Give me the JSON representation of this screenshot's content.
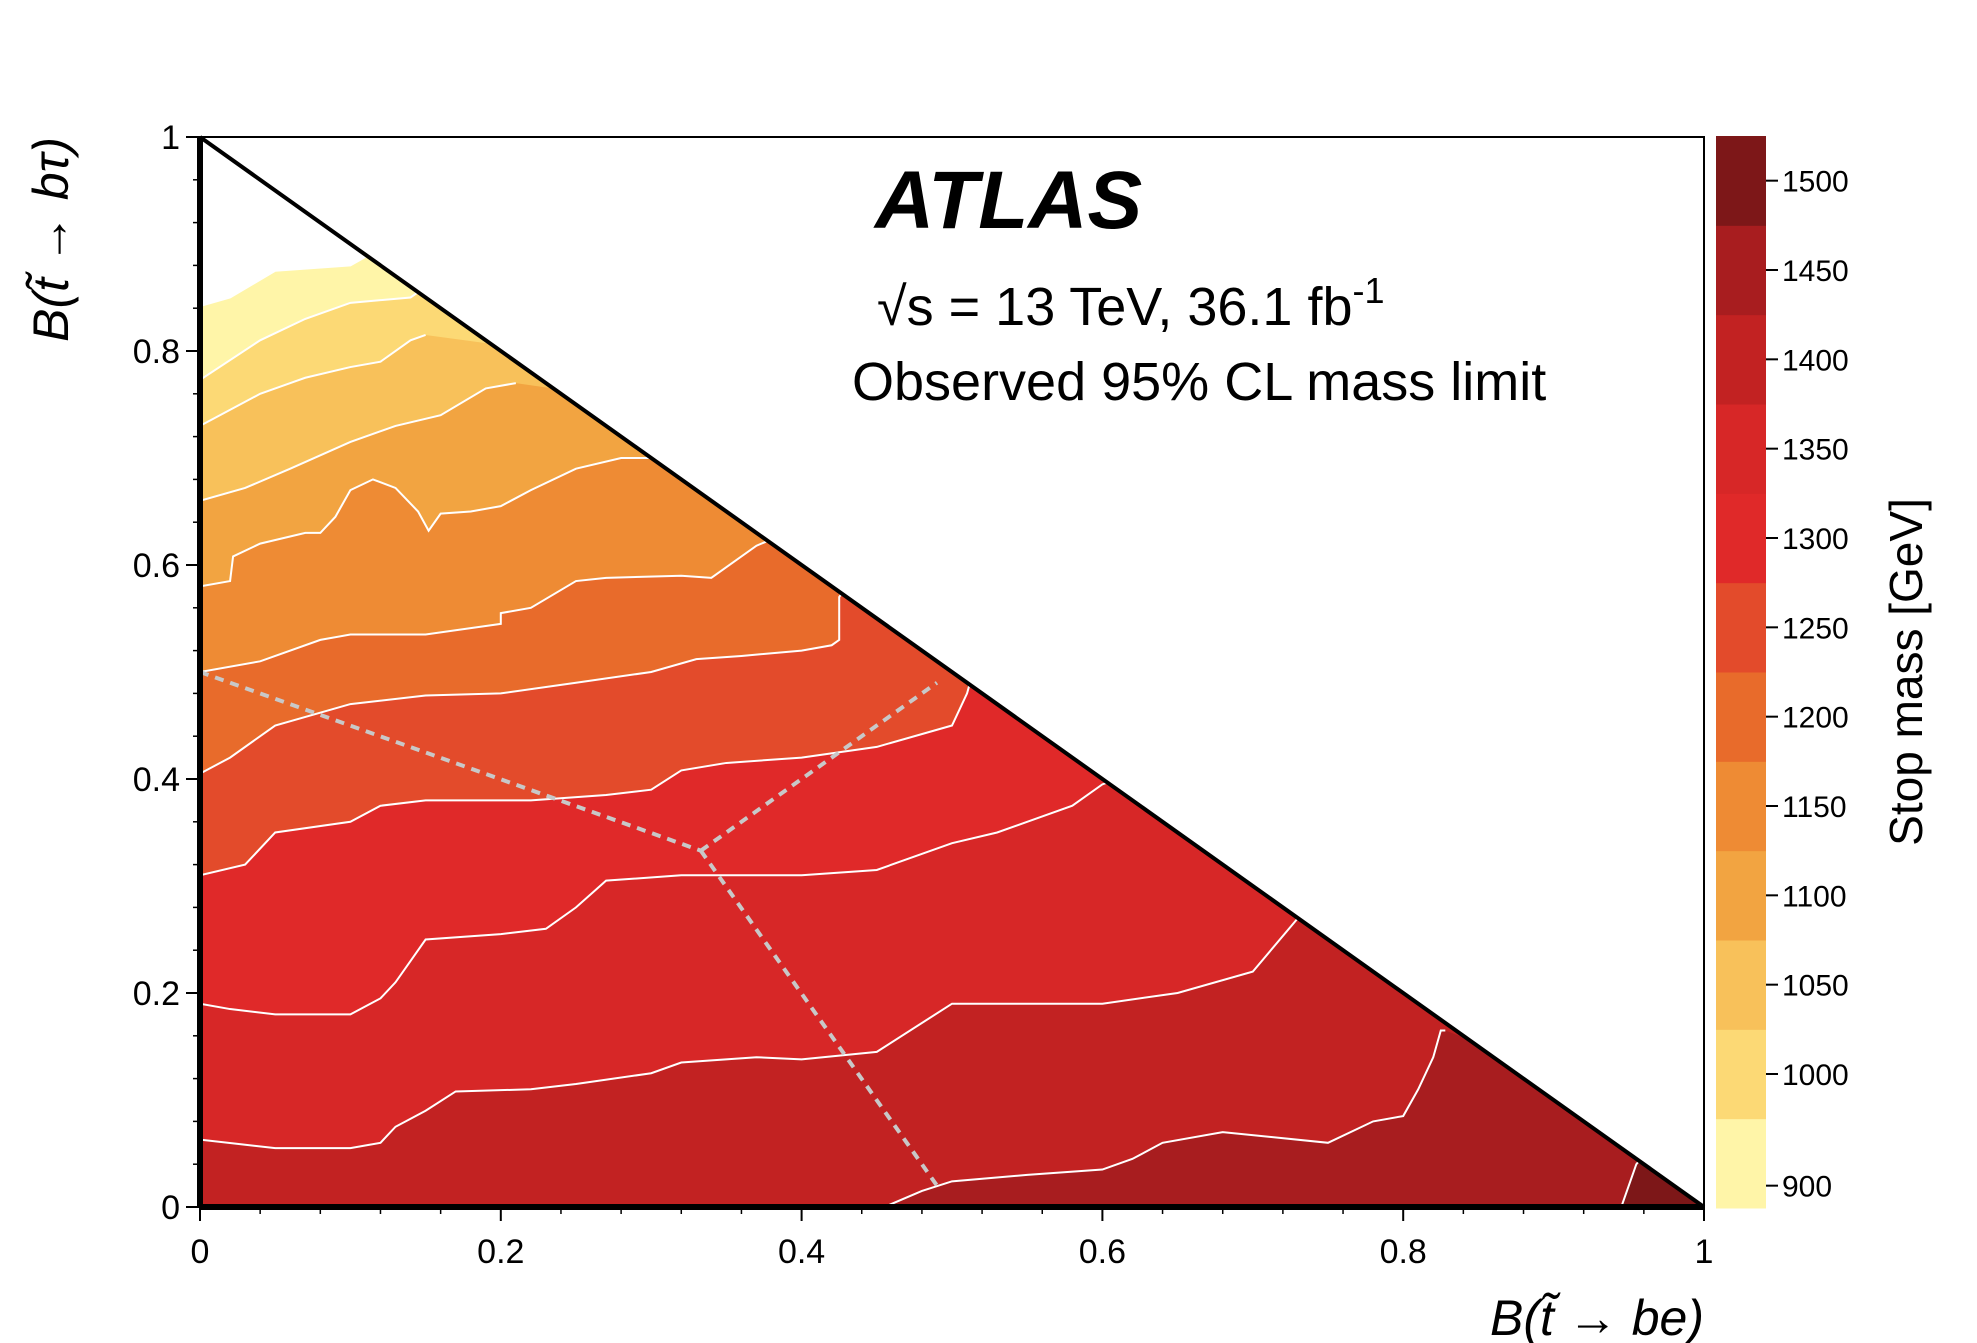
{
  "chart_data": {
    "type": "heatmap",
    "title": "ATLAS",
    "subtitle_energy": "√s = 13 TeV, 36.1 fb",
    "subtitle_energy_sup": "-1",
    "subtitle_limit": "Observed 95% CL mass limit",
    "xlabel": "B(t̃ → be)",
    "ylabel": "B(t̃ → bτ)",
    "xlim": [
      0,
      1
    ],
    "ylim": [
      0,
      1
    ],
    "x_ticks": [
      "0",
      "0.2",
      "0.4",
      "0.6",
      "0.8",
      "1"
    ],
    "y_ticks": [
      "0",
      "0.2",
      "0.4",
      "0.6",
      "0.8",
      "1"
    ],
    "x_tick_values": [
      0,
      0.2,
      0.4,
      0.6,
      0.8,
      1
    ],
    "y_tick_values": [
      0,
      0.2,
      0.4,
      0.6,
      0.8,
      1
    ],
    "colorbar": {
      "label": "Stop mass [GeV]",
      "range": [
        875,
        1525
      ],
      "tick_labels": [
        "900",
        "1000",
        "1050",
        "1100",
        "1150",
        "1200",
        "1250",
        "1300",
        "1350",
        "1400",
        "1450",
        "1500"
      ],
      "tick_values": [
        900,
        1000,
        1050,
        1100,
        1150,
        1200,
        1250,
        1300,
        1350,
        1400,
        1450,
        1500
      ],
      "bands": [
        {
          "from": 875,
          "to": 975,
          "color": "#fff5a8"
        },
        {
          "from": 975,
          "to": 1025,
          "color": "#fcd975"
        },
        {
          "from": 1025,
          "to": 1075,
          "color": "#f8c15a"
        },
        {
          "from": 1075,
          "to": 1125,
          "color": "#f2a441"
        },
        {
          "from": 1125,
          "to": 1175,
          "color": "#ee8b34"
        },
        {
          "from": 1175,
          "to": 1225,
          "color": "#e86b2b"
        },
        {
          "from": 1225,
          "to": 1275,
          "color": "#e34b2b"
        },
        {
          "from": 1275,
          "to": 1325,
          "color": "#e02929"
        },
        {
          "from": 1325,
          "to": 1375,
          "color": "#d72727"
        },
        {
          "from": 1375,
          "to": 1425,
          "color": "#c22222"
        },
        {
          "from": 1425,
          "to": 1475,
          "color": "#a81d1f"
        },
        {
          "from": 1475,
          "to": 1525,
          "color": "#7d1718"
        }
      ]
    },
    "contours": [
      {
        "level": 1500,
        "points": [
          [
            0.945,
            0.0
          ],
          [
            0.955,
            0.04
          ],
          [
            0.958,
            0.045
          ]
        ]
      },
      {
        "level": 1450,
        "points": [
          [
            0.455,
            0.0
          ],
          [
            0.48,
            0.015
          ],
          [
            0.5,
            0.024
          ],
          [
            0.55,
            0.03
          ],
          [
            0.6,
            0.035
          ],
          [
            0.62,
            0.045
          ],
          [
            0.64,
            0.06
          ],
          [
            0.68,
            0.07
          ],
          [
            0.75,
            0.06
          ],
          [
            0.78,
            0.08
          ],
          [
            0.8,
            0.085
          ],
          [
            0.81,
            0.11
          ],
          [
            0.82,
            0.14
          ],
          [
            0.825,
            0.165
          ],
          [
            0.828,
            0.165
          ]
        ]
      },
      {
        "level": 1400,
        "points": [
          [
            0.0,
            0.063
          ],
          [
            0.05,
            0.055
          ],
          [
            0.1,
            0.055
          ],
          [
            0.12,
            0.06
          ],
          [
            0.13,
            0.075
          ],
          [
            0.15,
            0.09
          ],
          [
            0.17,
            0.108
          ],
          [
            0.22,
            0.11
          ],
          [
            0.25,
            0.115
          ],
          [
            0.3,
            0.125
          ],
          [
            0.32,
            0.135
          ],
          [
            0.37,
            0.14
          ],
          [
            0.4,
            0.138
          ],
          [
            0.45,
            0.145
          ],
          [
            0.5,
            0.19
          ],
          [
            0.55,
            0.19
          ],
          [
            0.6,
            0.19
          ],
          [
            0.65,
            0.2
          ],
          [
            0.7,
            0.22
          ],
          [
            0.73,
            0.27
          ]
        ]
      },
      {
        "level": 1350,
        "points": [
          [
            0.0,
            0.19
          ],
          [
            0.02,
            0.185
          ],
          [
            0.05,
            0.18
          ],
          [
            0.1,
            0.18
          ],
          [
            0.12,
            0.195
          ],
          [
            0.13,
            0.21
          ],
          [
            0.14,
            0.23
          ],
          [
            0.15,
            0.25
          ],
          [
            0.2,
            0.255
          ],
          [
            0.23,
            0.26
          ],
          [
            0.25,
            0.28
          ],
          [
            0.27,
            0.305
          ],
          [
            0.32,
            0.31
          ],
          [
            0.4,
            0.31
          ],
          [
            0.45,
            0.315
          ],
          [
            0.5,
            0.34
          ],
          [
            0.53,
            0.35
          ],
          [
            0.56,
            0.365
          ],
          [
            0.58,
            0.375
          ],
          [
            0.6,
            0.395
          ],
          [
            0.62,
            0.405
          ]
        ]
      },
      {
        "level": 1300,
        "points": [
          [
            0.0,
            0.31
          ],
          [
            0.03,
            0.32
          ],
          [
            0.05,
            0.35
          ],
          [
            0.1,
            0.36
          ],
          [
            0.12,
            0.375
          ],
          [
            0.15,
            0.38
          ],
          [
            0.22,
            0.38
          ],
          [
            0.27,
            0.385
          ],
          [
            0.3,
            0.39
          ],
          [
            0.32,
            0.408
          ],
          [
            0.35,
            0.415
          ],
          [
            0.4,
            0.42
          ],
          [
            0.45,
            0.43
          ],
          [
            0.5,
            0.45
          ],
          [
            0.51,
            0.48
          ],
          [
            0.512,
            0.49
          ]
        ]
      },
      {
        "level": 1250,
        "points": [
          [
            0.0,
            0.405
          ],
          [
            0.02,
            0.42
          ],
          [
            0.05,
            0.45
          ],
          [
            0.1,
            0.47
          ],
          [
            0.15,
            0.478
          ],
          [
            0.2,
            0.48
          ],
          [
            0.25,
            0.49
          ],
          [
            0.3,
            0.5
          ],
          [
            0.33,
            0.512
          ],
          [
            0.36,
            0.515
          ],
          [
            0.4,
            0.52
          ],
          [
            0.42,
            0.525
          ],
          [
            0.425,
            0.53
          ],
          [
            0.425,
            0.57
          ],
          [
            0.43,
            0.58
          ]
        ]
      },
      {
        "level": 1200,
        "points": [
          [
            0.0,
            0.5
          ],
          [
            0.04,
            0.51
          ],
          [
            0.08,
            0.53
          ],
          [
            0.1,
            0.535
          ],
          [
            0.15,
            0.535
          ],
          [
            0.2,
            0.545
          ],
          [
            0.2,
            0.555
          ],
          [
            0.22,
            0.56
          ],
          [
            0.25,
            0.585
          ],
          [
            0.27,
            0.588
          ],
          [
            0.32,
            0.59
          ],
          [
            0.34,
            0.588
          ],
          [
            0.37,
            0.618
          ],
          [
            0.39,
            0.63
          ]
        ]
      },
      {
        "level": 1150,
        "points": [
          [
            0.0,
            0.58
          ],
          [
            0.02,
            0.585
          ],
          [
            0.022,
            0.608
          ],
          [
            0.04,
            0.62
          ],
          [
            0.07,
            0.63
          ],
          [
            0.08,
            0.63
          ],
          [
            0.09,
            0.645
          ],
          [
            0.1,
            0.67
          ],
          [
            0.115,
            0.68
          ],
          [
            0.13,
            0.672
          ],
          [
            0.145,
            0.65
          ],
          [
            0.152,
            0.632
          ],
          [
            0.16,
            0.648
          ],
          [
            0.18,
            0.65
          ],
          [
            0.2,
            0.655
          ],
          [
            0.22,
            0.67
          ],
          [
            0.25,
            0.69
          ],
          [
            0.28,
            0.7
          ],
          [
            0.3,
            0.7
          ]
        ]
      },
      {
        "level": 1100,
        "points": [
          [
            0.0,
            0.66
          ],
          [
            0.03,
            0.672
          ],
          [
            0.06,
            0.69
          ],
          [
            0.1,
            0.715
          ],
          [
            0.13,
            0.73
          ],
          [
            0.16,
            0.74
          ],
          [
            0.19,
            0.765
          ],
          [
            0.21,
            0.77
          ]
        ]
      },
      {
        "level": 1050,
        "points": [
          [
            0.0,
            0.73
          ],
          [
            0.04,
            0.76
          ],
          [
            0.07,
            0.775
          ],
          [
            0.1,
            0.785
          ],
          [
            0.12,
            0.79
          ],
          [
            0.14,
            0.81
          ],
          [
            0.15,
            0.815
          ]
        ]
      },
      {
        "level": 1000,
        "points": [
          [
            0.0,
            0.773
          ],
          [
            0.04,
            0.81
          ],
          [
            0.07,
            0.83
          ],
          [
            0.1,
            0.845
          ],
          [
            0.14,
            0.85
          ],
          [
            0.145,
            0.855
          ]
        ]
      },
      {
        "level": 900,
        "points": [
          [
            0.0,
            0.842
          ],
          [
            0.02,
            0.85
          ],
          [
            0.05,
            0.875
          ],
          [
            0.1,
            0.88
          ],
          [
            0.11,
            0.888
          ]
        ]
      }
    ],
    "dashed_lines": [
      {
        "points": [
          [
            0.0,
            0.5
          ],
          [
            0.333,
            0.333
          ]
        ]
      },
      {
        "points": [
          [
            0.333,
            0.333
          ],
          [
            0.49,
            0.49
          ]
        ]
      },
      {
        "points": [
          [
            0.333,
            0.333
          ],
          [
            0.49,
            0.02
          ]
        ]
      }
    ]
  }
}
